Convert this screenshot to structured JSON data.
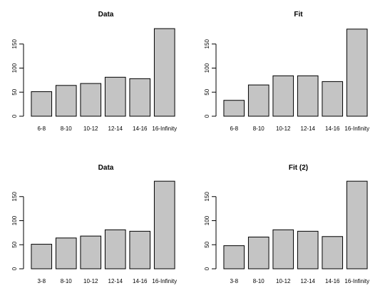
{
  "chart_data": [
    {
      "type": "bar",
      "title": "Data",
      "categories": [
        "6-8",
        "8-10",
        "10-12",
        "12-14",
        "14-16",
        "16-Infinity"
      ],
      "values": [
        51,
        64,
        68,
        81,
        78,
        182
      ],
      "y_ticks": [
        "0",
        "50",
        "100",
        "150"
      ],
      "ylim": [
        0,
        185
      ],
      "bar_color": "#c4c4c4",
      "grid": false
    },
    {
      "type": "bar",
      "title": "Fit",
      "categories": [
        "6-8",
        "8-10",
        "10-12",
        "12-14",
        "14-16",
        "16-Infinity"
      ],
      "values": [
        33,
        65,
        84,
        84,
        72,
        181
      ],
      "y_ticks": [
        "0",
        "50",
        "100",
        "150"
      ],
      "ylim": [
        0,
        185
      ],
      "bar_color": "#c4c4c4",
      "grid": false
    },
    {
      "type": "bar",
      "title": "Data",
      "categories": [
        "3-8",
        "8-10",
        "10-12",
        "12-14",
        "14-16",
        "16-Infinity"
      ],
      "values": [
        51,
        64,
        68,
        81,
        78,
        182
      ],
      "y_ticks": [
        "0",
        "50",
        "100",
        "150"
      ],
      "ylim": [
        0,
        185
      ],
      "bar_color": "#c4c4c4",
      "grid": false
    },
    {
      "type": "bar",
      "title": "Fit (2)",
      "categories": [
        "3-8",
        "8-10",
        "10-12",
        "12-14",
        "14-16",
        "16-Infinity"
      ],
      "values": [
        48,
        66,
        81,
        78,
        67,
        182
      ],
      "y_ticks": [
        "0",
        "50",
        "100",
        "150"
      ],
      "ylim": [
        0,
        185
      ],
      "bar_color": "#c4c4c4",
      "grid": false
    }
  ]
}
